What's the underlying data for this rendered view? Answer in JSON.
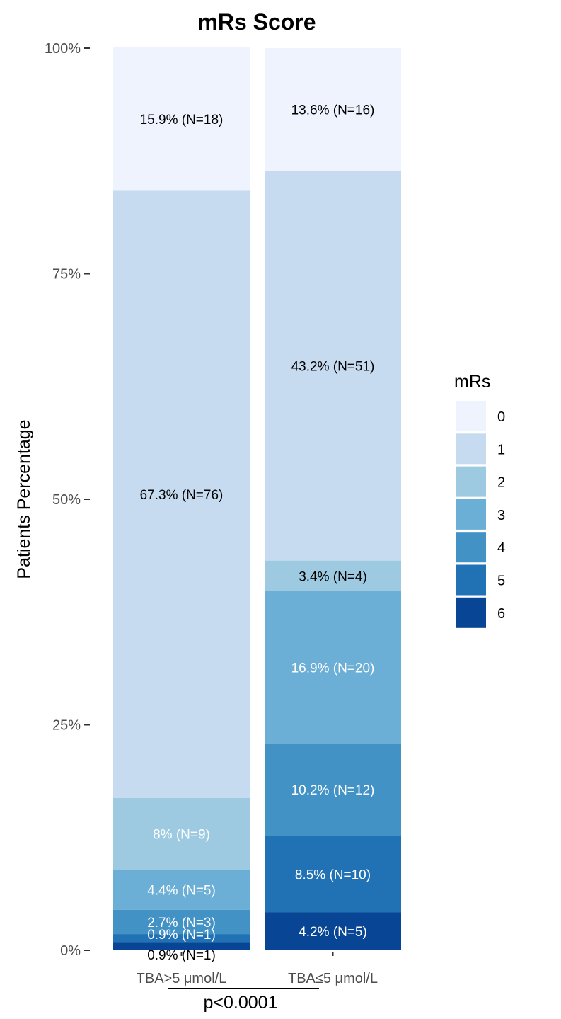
{
  "chart_data": {
    "type": "bar",
    "stacked": true,
    "title": "mRs Score",
    "xlabel": "",
    "ylabel": "Patients Percentage",
    "ylim": [
      0,
      100
    ],
    "y_ticks": [
      {
        "value": 0,
        "label": "0%"
      },
      {
        "value": 25,
        "label": "25%"
      },
      {
        "value": 50,
        "label": "50%"
      },
      {
        "value": 75,
        "label": "75%"
      },
      {
        "value": 100,
        "label": "100%"
      }
    ],
    "categories": [
      "TBA>5 μmol/L",
      "TBA≤5 μmol/L"
    ],
    "legend": {
      "title": "mRs",
      "placement": "right",
      "entries": [
        {
          "name": "0",
          "color": "#eef3fe"
        },
        {
          "name": "1",
          "color": "#c6dbef"
        },
        {
          "name": "2",
          "color": "#9ecae1"
        },
        {
          "name": "3",
          "color": "#6baed6"
        },
        {
          "name": "4",
          "color": "#4292c6"
        },
        {
          "name": "5",
          "color": "#2171b5"
        },
        {
          "name": "6",
          "color": "#084594"
        }
      ]
    },
    "series": [
      {
        "name": "0",
        "values": [
          15.9,
          13.6
        ],
        "labels": [
          "15.9% (N=18)",
          "13.6% (N=16)"
        ]
      },
      {
        "name": "1",
        "values": [
          67.3,
          43.2
        ],
        "labels": [
          "67.3% (N=76)",
          "43.2% (N=51)"
        ]
      },
      {
        "name": "2",
        "values": [
          8.0,
          3.4
        ],
        "labels": [
          "8% (N=9)",
          "3.4% (N=4)"
        ]
      },
      {
        "name": "3",
        "values": [
          4.4,
          16.9
        ],
        "labels": [
          "4.4% (N=5)",
          "16.9% (N=20)"
        ]
      },
      {
        "name": "4",
        "values": [
          2.7,
          10.2
        ],
        "labels": [
          "2.7% (N=3)",
          "10.2% (N=12)"
        ]
      },
      {
        "name": "5",
        "values": [
          0.9,
          8.5
        ],
        "labels": [
          "0.9% (N=1)",
          "8.5% (N=10)"
        ]
      },
      {
        "name": "6",
        "values": [
          0.9,
          4.2
        ],
        "labels": [
          "0.9% (N=1)",
          "4.2% (N=5)"
        ]
      }
    ],
    "label_colors": [
      "#000000",
      "#000000",
      "#ffffff",
      "#ffffff",
      "#ffffff",
      "#ffffff",
      "#ffffff"
    ],
    "label_colors_overrides": [
      {
        "series": 2,
        "category": 1,
        "color": "#000000"
      },
      {
        "series": 6,
        "category": 0,
        "color": "#000000"
      }
    ],
    "grid": false,
    "annotation": "p<0.0001"
  }
}
